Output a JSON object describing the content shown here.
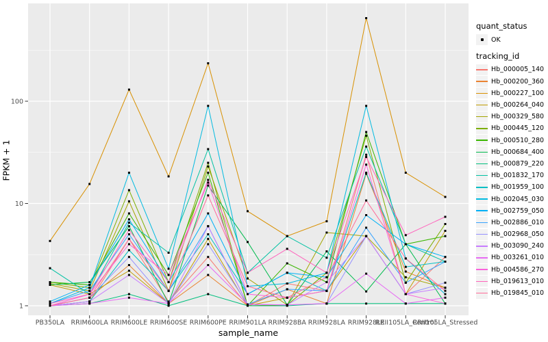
{
  "chart_data": {
    "type": "line",
    "title": "",
    "xlabel": "sample_name",
    "ylabel": "FPKM + 1",
    "y_scale": "log10",
    "grid": true,
    "panel_bg": "#EBEBEB",
    "grid_color": "#FFFFFF",
    "tick_color": "#333333",
    "tick_label_color": "#4D4D4D",
    "point_color": "#000000",
    "y_ticks": [
      1,
      10,
      100
    ],
    "y_tick_labels": [
      "1",
      "10",
      "100"
    ],
    "y_minor_ticks": [
      3.162,
      31.62,
      316.2
    ],
    "ylim": [
      0.81,
      840
    ],
    "legend_position": "right",
    "categories": [
      "PB350LA",
      "RRIM600LA",
      "RRIM600LE",
      "RRIM600SE",
      "RRIM600PE",
      "RRIM901LA",
      "RRIM928BA",
      "RRIM928LA",
      "RRIM928LE",
      "RRII105LA_Control",
      "RRII105LA_Stressed"
    ],
    "legend": {
      "quant_status_title": "quant_status",
      "quant_status_items": [
        {
          "label": "OK",
          "shape": "point",
          "color": "#000000"
        }
      ],
      "tracking_id_title": "tracking_id"
    },
    "series": [
      {
        "name": "Hb_000005_140",
        "color": "#F8766D",
        "values": [
          1.0,
          1.1,
          4.5,
          1.1,
          3.0,
          1.0,
          1.65,
          1.4,
          30,
          1.3,
          3.0
        ]
      },
      {
        "name": "Hb_000200_360",
        "color": "#EA8331",
        "values": [
          1.0,
          1.2,
          2.5,
          1.05,
          2.0,
          1.0,
          1.45,
          1.05,
          19.5,
          2.16,
          1.5
        ]
      },
      {
        "name": "Hb_000227_100",
        "color": "#D89000",
        "values": [
          4.3,
          15.5,
          130,
          18.4,
          235,
          8.4,
          4.8,
          6.7,
          650,
          20,
          11.6
        ]
      },
      {
        "name": "Hb_000264_040",
        "color": "#C09B00",
        "values": [
          1.6,
          1.3,
          2.2,
          1.05,
          4.5,
          1.0,
          1.2,
          1.4,
          4.8,
          1.3,
          5.4
        ]
      },
      {
        "name": "Hb_000329_580",
        "color": "#A3A500",
        "values": [
          1.65,
          1.4,
          10.5,
          1.4,
          23,
          1.85,
          1.02,
          5.2,
          4.8,
          1.9,
          1.5
        ]
      },
      {
        "name": "Hb_000445_120",
        "color": "#7CAE00",
        "values": [
          1.7,
          1.5,
          13.5,
          1.7,
          25,
          1.0,
          1.02,
          2.1,
          46,
          1.68,
          6.3
        ]
      },
      {
        "name": "Hb_000510_280",
        "color": "#39B600",
        "values": [
          1.7,
          1.6,
          8.0,
          2.0,
          20,
          1.0,
          2.6,
          1.7,
          50,
          4.0,
          4.8
        ]
      },
      {
        "name": "Hb_000684_400",
        "color": "#00BB4E",
        "values": [
          1.6,
          1.7,
          6.0,
          1.05,
          15,
          4.2,
          1.02,
          3.4,
          1.38,
          4.0,
          1.05
        ]
      },
      {
        "name": "Hb_000879_220",
        "color": "#00BF7D",
        "values": [
          1.0,
          1.05,
          1.3,
          1.0,
          1.3,
          1.0,
          1.0,
          1.05,
          1.05,
          1.05,
          1.05
        ]
      },
      {
        "name": "Hb_001832_170",
        "color": "#00C1A3",
        "values": [
          2.33,
          1.3,
          6.5,
          3.3,
          34,
          2.1,
          4.8,
          2.95,
          36,
          4.0,
          2.7
        ]
      },
      {
        "name": "Hb_001959_100",
        "color": "#00BFC4",
        "values": [
          1.0,
          1.1,
          3.5,
          1.4,
          5.0,
          1.3,
          2.1,
          1.4,
          20,
          2.4,
          2.7
        ]
      },
      {
        "name": "Hb_002045_030",
        "color": "#00BAE0",
        "values": [
          1.05,
          1.5,
          20,
          2.3,
          90,
          1.55,
          1.65,
          2.1,
          90,
          2.9,
          1.3
        ]
      },
      {
        "name": "Hb_002759_050",
        "color": "#00B0F6",
        "values": [
          1.1,
          1.6,
          7.0,
          1.7,
          8.0,
          1.3,
          2.1,
          1.9,
          7.7,
          4.0,
          3.0
        ]
      },
      {
        "name": "Hb_002886_010",
        "color": "#35A2FF",
        "values": [
          1.05,
          1.4,
          5.0,
          1.4,
          6.0,
          1.03,
          1.45,
          1.4,
          5.8,
          1.68,
          2.7
        ]
      },
      {
        "name": "Hb_002968_050",
        "color": "#9590FF",
        "values": [
          1.0,
          1.2,
          3.0,
          1.05,
          4.0,
          1.03,
          1.02,
          1.05,
          4.8,
          1.3,
          1.68
        ]
      },
      {
        "name": "Hb_003090_240",
        "color": "#C77CFF",
        "values": [
          1.0,
          1.1,
          2.0,
          1.05,
          6.0,
          1.03,
          1.02,
          1.7,
          4.8,
          1.3,
          1.5
        ]
      },
      {
        "name": "Hb_003261_010",
        "color": "#E76BF3",
        "values": [
          1.0,
          1.05,
          1.2,
          1.05,
          2.5,
          1.03,
          1.02,
          1.05,
          2.06,
          1.05,
          1.2
        ]
      },
      {
        "name": "Hb_004586_270",
        "color": "#FA62DB",
        "values": [
          1.0,
          1.3,
          4.0,
          2.0,
          16,
          1.3,
          1.2,
          1.4,
          24,
          1.3,
          1.05
        ]
      },
      {
        "name": "Hb_019613_010",
        "color": "#FF62BC",
        "values": [
          1.05,
          1.3,
          5.5,
          1.7,
          17,
          2.1,
          3.6,
          2.1,
          28.5,
          4.9,
          7.4
        ]
      },
      {
        "name": "Hb_019845_010",
        "color": "#FF6A98",
        "values": [
          1.0,
          1.2,
          4.5,
          1.4,
          12,
          1.55,
          1.2,
          1.9,
          10.7,
          2.9,
          1.4
        ]
      }
    ]
  }
}
